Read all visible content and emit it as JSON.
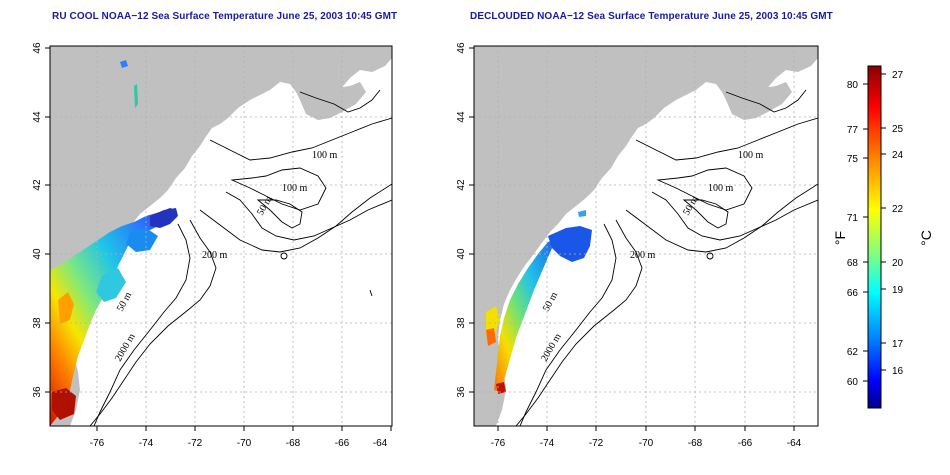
{
  "panels": [
    {
      "id": "left",
      "title": "RU COOL NOAA−12 Sea Surface Temperature June 25, 2003 10:45 GMT",
      "contours": [
        "100 m",
        "100 m",
        "50 m",
        "200 m",
        "50 m",
        "2000 m"
      ]
    },
    {
      "id": "right",
      "title": "DECLOUDED NOAA−12 Sea Surface Temperature June 25, 2003 10:45 GMT",
      "contours": [
        "100 m",
        "100 m",
        "50 m",
        "200 m",
        "50 m",
        "2000 m"
      ]
    }
  ],
  "axes": {
    "x_ticks": [
      "-76",
      "-74",
      "-72",
      "-70",
      "-68",
      "-66",
      "-64"
    ],
    "y_ticks": [
      "46",
      "44",
      "42",
      "40",
      "38",
      "36"
    ]
  },
  "colorbar": {
    "f_unit": "°F",
    "c_unit": "°C",
    "f_ticks": [
      "80",
      "77",
      "75",
      "71",
      "68",
      "66",
      "62",
      "60"
    ],
    "c_ticks": [
      "27",
      "25",
      "24",
      "22",
      "20",
      "19",
      "17",
      "16"
    ],
    "colors": [
      "#8b0000",
      "#ff0000",
      "#ff8c00",
      "#ffff00",
      "#7fff7f",
      "#00ffff",
      "#007fff",
      "#0000ff",
      "#00008b"
    ]
  },
  "colors": {
    "land": "#c0c0c0",
    "water": "#ffffff",
    "title": "#1a1aa0",
    "grid": "#b0b0b0"
  }
}
